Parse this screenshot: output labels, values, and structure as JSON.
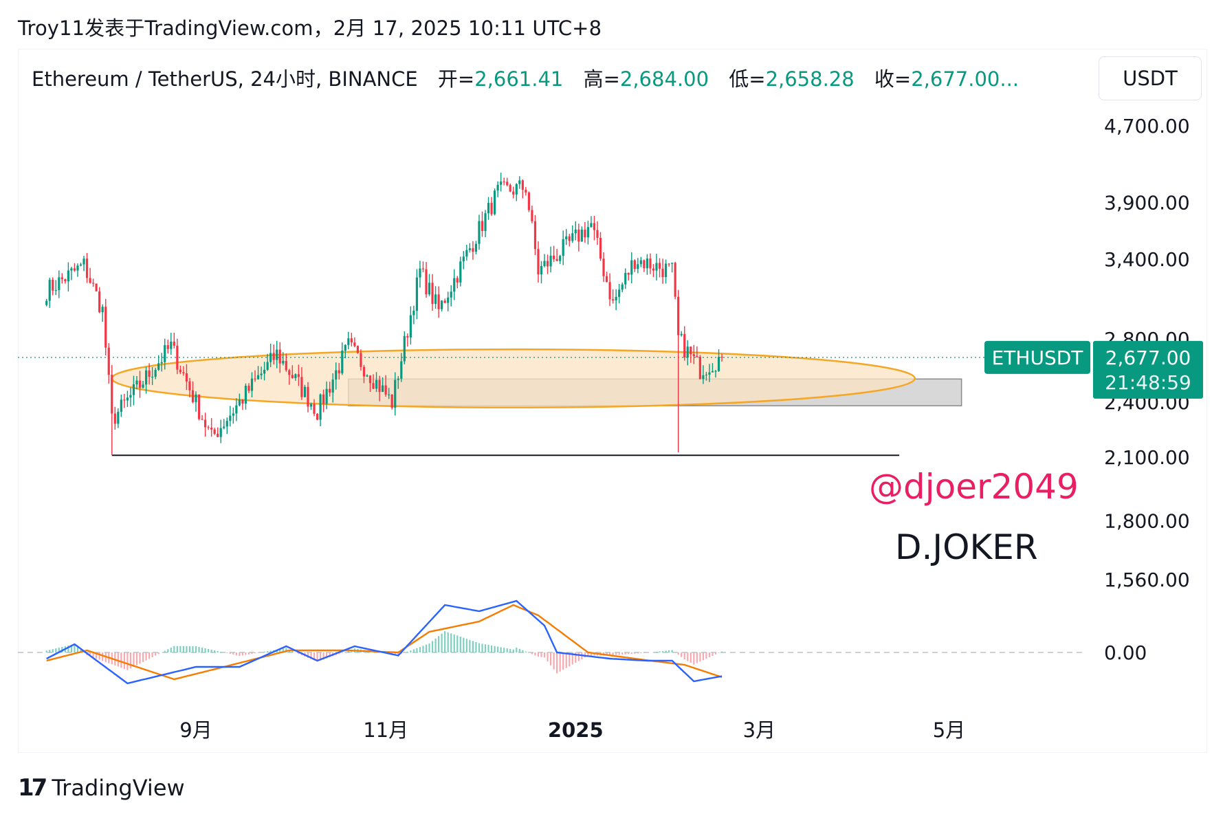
{
  "caption": "Troy11发表于TradingView.com，2月 17, 2025 10:11 UTC+8",
  "legend": {
    "symbol": "Ethereum / TetherUS, 24小时, BINANCE",
    "open_label": "开=",
    "open": "2,661.41",
    "high_label": "高=",
    "high": "2,684.00",
    "low_label": "低=",
    "low": "2,658.28",
    "close_label": "收=",
    "close": "2,677.00..."
  },
  "currency": "USDT",
  "price_badge": {
    "ticker": "ETHUSDT",
    "price": "2,677.00",
    "countdown": "21:48:59",
    "color": "#089981"
  },
  "annotations": {
    "handle": "@djoer2049",
    "handle_color": "#e91e63",
    "signature": "D.JOKER"
  },
  "brand": {
    "name": "TradingView"
  },
  "colors": {
    "up": "#089981",
    "down": "#f23645",
    "macd": "#2962ff",
    "signal": "#f57c00",
    "zone_fill": "#fbe3c4",
    "zone_stroke": "#f5a623",
    "box_fill": "#c8c8c8"
  },
  "chart_data": {
    "type": "candlestick",
    "interval": "24小时",
    "price_scale": "log",
    "y_ticks": [
      "4,700.00",
      "3,900.00",
      "3,400.00",
      "2,800.00",
      "2,400.00",
      "2,100.00",
      "1,800.00",
      "1,560.00"
    ],
    "x_ticks": [
      "9月",
      "11月",
      "2025",
      "3月",
      "5月"
    ],
    "last_price": 2677.0,
    "path_keypoints": [
      {
        "date": "2024-07-15",
        "price": 3150
      },
      {
        "date": "2024-07-27",
        "price": 3350
      },
      {
        "date": "2024-08-02",
        "price": 3000
      },
      {
        "date": "2024-08-05",
        "price": 2300
      },
      {
        "date": "2024-08-24",
        "price": 2750
      },
      {
        "date": "2024-09-06",
        "price": 2200
      },
      {
        "date": "2024-09-27",
        "price": 2700
      },
      {
        "date": "2024-10-10",
        "price": 2350
      },
      {
        "date": "2024-10-20",
        "price": 2750
      },
      {
        "date": "2024-11-03",
        "price": 2400
      },
      {
        "date": "2024-11-12",
        "price": 3300
      },
      {
        "date": "2024-11-18",
        "price": 3000
      },
      {
        "date": "2024-12-07",
        "price": 4000
      },
      {
        "date": "2024-12-16",
        "price": 4050
      },
      {
        "date": "2024-12-20",
        "price": 3300
      },
      {
        "date": "2025-01-06",
        "price": 3700
      },
      {
        "date": "2025-01-13",
        "price": 3050
      },
      {
        "date": "2025-01-20",
        "price": 3400
      },
      {
        "date": "2025-02-01",
        "price": 3300
      },
      {
        "date": "2025-02-03",
        "price": 2800
      },
      {
        "date": "2025-02-10",
        "price": 2600
      },
      {
        "date": "2025-02-17",
        "price": 2677
      }
    ],
    "horizontal_line": {
      "price": 2110,
      "from": "2024-08-05",
      "to": "2025-04-15"
    },
    "ellipse_zone": {
      "from": "2024-08-05",
      "to": "2025-04-20",
      "low": 2370,
      "high": 2730
    },
    "rectangle_zone": {
      "from": "2024-10-20",
      "to": "2025-05-05",
      "low": 2380,
      "high": 2540
    },
    "indicator": {
      "type": "MACD",
      "zero_label": "0.00",
      "macd_keypoints": [
        {
          "date": "2024-07-15",
          "v": -30
        },
        {
          "date": "2024-07-24",
          "v": 40
        },
        {
          "date": "2024-08-10",
          "v": -150
        },
        {
          "date": "2024-09-01",
          "v": -70
        },
        {
          "date": "2024-09-15",
          "v": -70
        },
        {
          "date": "2024-09-30",
          "v": 30
        },
        {
          "date": "2024-10-10",
          "v": -40
        },
        {
          "date": "2024-10-22",
          "v": 30
        },
        {
          "date": "2024-11-05",
          "v": -15
        },
        {
          "date": "2024-11-20",
          "v": 230
        },
        {
          "date": "2024-12-01",
          "v": 200
        },
        {
          "date": "2024-12-13",
          "v": 250
        },
        {
          "date": "2024-12-22",
          "v": 130
        },
        {
          "date": "2024-12-26",
          "v": 0
        },
        {
          "date": "2025-01-12",
          "v": -30
        },
        {
          "date": "2025-01-24",
          "v": -40
        },
        {
          "date": "2025-02-01",
          "v": -40
        },
        {
          "date": "2025-02-08",
          "v": -140
        },
        {
          "date": "2025-02-17",
          "v": -115
        }
      ],
      "signal_keypoints": [
        {
          "date": "2024-07-15",
          "v": -40
        },
        {
          "date": "2024-07-28",
          "v": 10
        },
        {
          "date": "2024-08-25",
          "v": -130
        },
        {
          "date": "2024-09-10",
          "v": -70
        },
        {
          "date": "2024-10-01",
          "v": 10
        },
        {
          "date": "2024-10-20",
          "v": 10
        },
        {
          "date": "2024-11-05",
          "v": 0
        },
        {
          "date": "2024-11-15",
          "v": 100
        },
        {
          "date": "2024-12-01",
          "v": 150
        },
        {
          "date": "2024-12-12",
          "v": 230
        },
        {
          "date": "2024-12-20",
          "v": 180
        },
        {
          "date": "2025-01-05",
          "v": 0
        },
        {
          "date": "2025-01-25",
          "v": -40
        },
        {
          "date": "2025-02-05",
          "v": -60
        },
        {
          "date": "2025-02-17",
          "v": -120
        }
      ]
    }
  }
}
